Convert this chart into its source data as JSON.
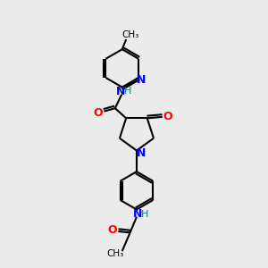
{
  "bg_color": "#ebebeb",
  "bond_color": "#000000",
  "N_color": "#0000ff",
  "O_color": "#ff0000",
  "NH_color": "#008080",
  "lw": 1.5,
  "fig_size": [
    3.0,
    3.0
  ],
  "dpi": 100,
  "xlim": [
    0,
    10
  ],
  "ylim": [
    0,
    10
  ]
}
